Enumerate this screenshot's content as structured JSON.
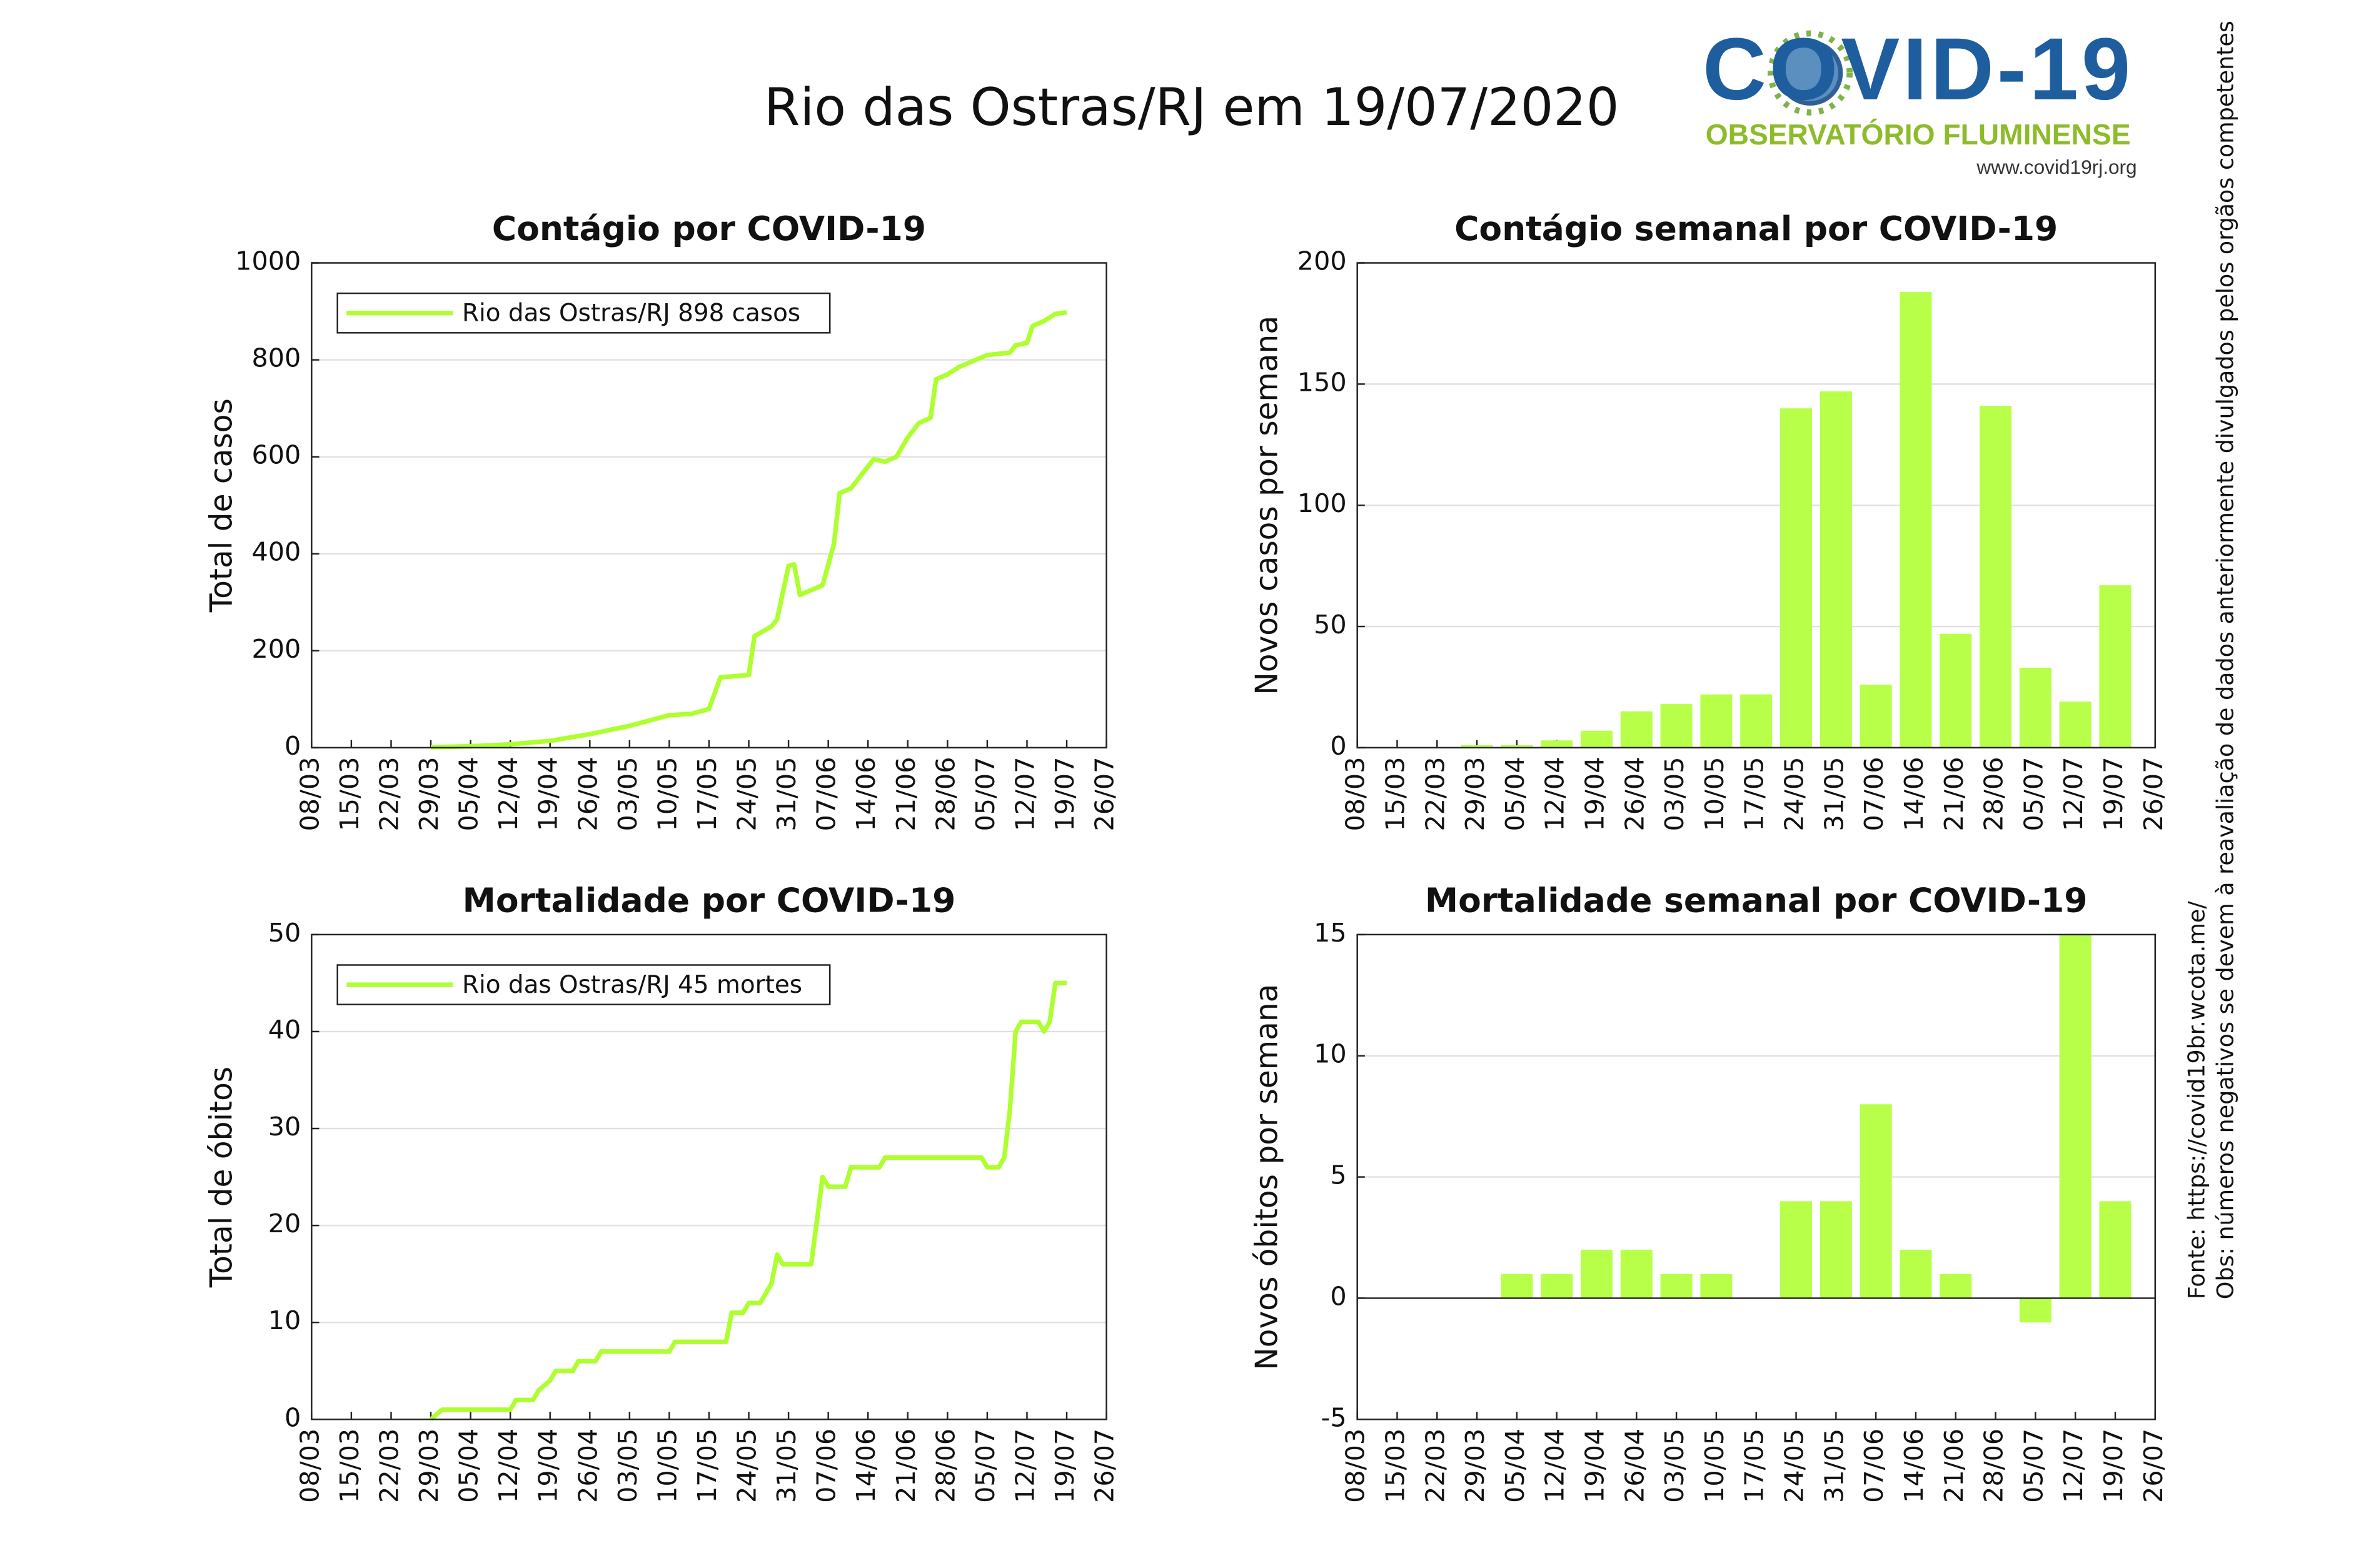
{
  "title": "Rio das Ostras/RJ em 19/07/2020",
  "logo": {
    "name": "COVID-19",
    "subtitle": "OBSERVATÓRIO FLUMINENSE",
    "url": "www.covid19rj.org"
  },
  "notes": {
    "source": "Fonte: https://covid19br.wcota.me/",
    "obs": "Obs: números negativos se devem à reavaliação de dados anteriormente divulgados pelos orgãos competentes"
  },
  "chart_data": [
    {
      "type": "line",
      "title": "Contágio por COVID-19",
      "y_label": "Total de casos",
      "x": [
        "29/03",
        "05/04",
        "12/04",
        "19/04",
        "26/04",
        "03/05",
        "10/05",
        "14/05",
        "17/05",
        "19/05",
        "24/05",
        "25/05",
        "28/05",
        "29/05",
        "31/05",
        "01/06",
        "02/06",
        "06/06",
        "08/06",
        "09/06",
        "11/06",
        "14/06",
        "15/06",
        "17/06",
        "19/06",
        "21/06",
        "23/06",
        "25/06",
        "26/06",
        "28/06",
        "30/06",
        "02/07",
        "05/07",
        "09/07",
        "10/07",
        "12/07",
        "13/07",
        "15/07",
        "17/07",
        "19/07"
      ],
      "series": [
        {
          "name": "Rio das Ostras/RJ  898 casos",
          "color": "#adff2f",
          "values": [
            1,
            3,
            7,
            14,
            28,
            45,
            67,
            70,
            80,
            145,
            150,
            230,
            250,
            265,
            375,
            378,
            315,
            335,
            420,
            525,
            535,
            580,
            595,
            590,
            600,
            640,
            670,
            680,
            760,
            770,
            785,
            795,
            810,
            815,
            830,
            835,
            870,
            880,
            895,
            898
          ]
        }
      ],
      "xlim": [
        "08/03",
        "26/07"
      ],
      "xticks": [
        "08/03",
        "15/03",
        "22/03",
        "29/03",
        "05/04",
        "12/04",
        "19/04",
        "26/04",
        "03/05",
        "10/05",
        "17/05",
        "24/05",
        "31/05",
        "07/06",
        "14/06",
        "21/06",
        "28/06",
        "05/07",
        "12/07",
        "19/07",
        "26/07"
      ],
      "ylim": [
        0,
        1000
      ],
      "yticks": [
        0,
        200,
        400,
        600,
        800,
        1000
      ],
      "grid": true,
      "legend": "upper left"
    },
    {
      "type": "bar",
      "title": "Contágio semanal por COVID-19",
      "y_label": "Novos casos por semana",
      "color": "#b8ff4a",
      "x": [
        "08/03",
        "15/03",
        "22/03",
        "29/03",
        "05/04",
        "12/04",
        "19/04",
        "26/04",
        "03/05",
        "10/05",
        "17/05",
        "24/05",
        "31/05",
        "07/06",
        "14/06",
        "21/06",
        "28/06",
        "05/07",
        "12/07",
        "19/07"
      ],
      "values": [
        0,
        0,
        0,
        1,
        1,
        3,
        7,
        15,
        18,
        22,
        22,
        140,
        147,
        26,
        188,
        47,
        141,
        33,
        19,
        67
      ],
      "xlim": [
        "08/03",
        "26/07"
      ],
      "xticks": [
        "08/03",
        "15/03",
        "22/03",
        "29/03",
        "05/04",
        "12/04",
        "19/04",
        "26/04",
        "03/05",
        "10/05",
        "17/05",
        "24/05",
        "31/05",
        "07/06",
        "14/06",
        "21/06",
        "28/06",
        "05/07",
        "12/07",
        "19/07",
        "26/07"
      ],
      "ylim": [
        0,
        200
      ],
      "yticks": [
        0,
        50,
        100,
        150,
        200
      ],
      "grid": true
    },
    {
      "type": "line",
      "title": "Mortalidade por COVID-19",
      "y_label": "Total de óbitos",
      "x": [
        "29/03",
        "31/03",
        "12/04",
        "13/04",
        "16/04",
        "17/04",
        "19/04",
        "20/04",
        "23/04",
        "24/04",
        "27/04",
        "28/04",
        "10/05",
        "11/05",
        "20/05",
        "21/05",
        "23/05",
        "24/05",
        "26/05",
        "28/05",
        "29/05",
        "30/05",
        "04/06",
        "06/06",
        "07/06",
        "10/06",
        "11/06",
        "16/06",
        "17/06",
        "04/07",
        "05/07",
        "07/07",
        "08/07",
        "09/07",
        "10/07",
        "11/07",
        "14/07",
        "15/07",
        "16/07",
        "17/07",
        "19/07"
      ],
      "series": [
        {
          "name": "Rio das Ostras/RJ  45 mortes",
          "color": "#adff2f",
          "values": [
            0,
            1,
            1,
            2,
            2,
            3,
            4,
            5,
            5,
            6,
            6,
            7,
            7,
            8,
            8,
            11,
            11,
            12,
            12,
            14,
            17,
            16,
            16,
            25,
            24,
            24,
            26,
            26,
            27,
            27,
            26,
            26,
            27,
            32,
            40,
            41,
            41,
            40,
            41,
            45,
            45
          ]
        }
      ],
      "xlim": [
        "08/03",
        "26/07"
      ],
      "xticks": [
        "08/03",
        "15/03",
        "22/03",
        "29/03",
        "05/04",
        "12/04",
        "19/04",
        "26/04",
        "03/05",
        "10/05",
        "17/05",
        "24/05",
        "31/05",
        "07/06",
        "14/06",
        "21/06",
        "28/06",
        "05/07",
        "12/07",
        "19/07",
        "26/07"
      ],
      "ylim": [
        0,
        50
      ],
      "yticks": [
        0,
        10,
        20,
        30,
        40,
        50
      ],
      "grid": true,
      "legend": "upper left"
    },
    {
      "type": "bar",
      "title": "Mortalidade semanal por COVID-19",
      "y_label": "Novos óbitos por semana",
      "color": "#b8ff4a",
      "x": [
        "08/03",
        "15/03",
        "22/03",
        "29/03",
        "05/04",
        "12/04",
        "19/04",
        "26/04",
        "03/05",
        "10/05",
        "17/05",
        "24/05",
        "31/05",
        "07/06",
        "14/06",
        "21/06",
        "28/06",
        "05/07",
        "12/07",
        "19/07"
      ],
      "values": [
        0,
        0,
        0,
        0,
        1,
        1,
        2,
        2,
        1,
        1,
        0,
        4,
        4,
        8,
        2,
        1,
        0,
        -1,
        15,
        4
      ],
      "xlim": [
        "08/03",
        "26/07"
      ],
      "xticks": [
        "08/03",
        "15/03",
        "22/03",
        "29/03",
        "05/04",
        "12/04",
        "19/04",
        "26/04",
        "03/05",
        "10/05",
        "17/05",
        "24/05",
        "31/05",
        "07/06",
        "14/06",
        "21/06",
        "28/06",
        "05/07",
        "12/07",
        "19/07",
        "26/07"
      ],
      "ylim": [
        -5,
        15
      ],
      "yticks": [
        -5,
        0,
        5,
        10,
        15
      ],
      "grid": true
    }
  ]
}
